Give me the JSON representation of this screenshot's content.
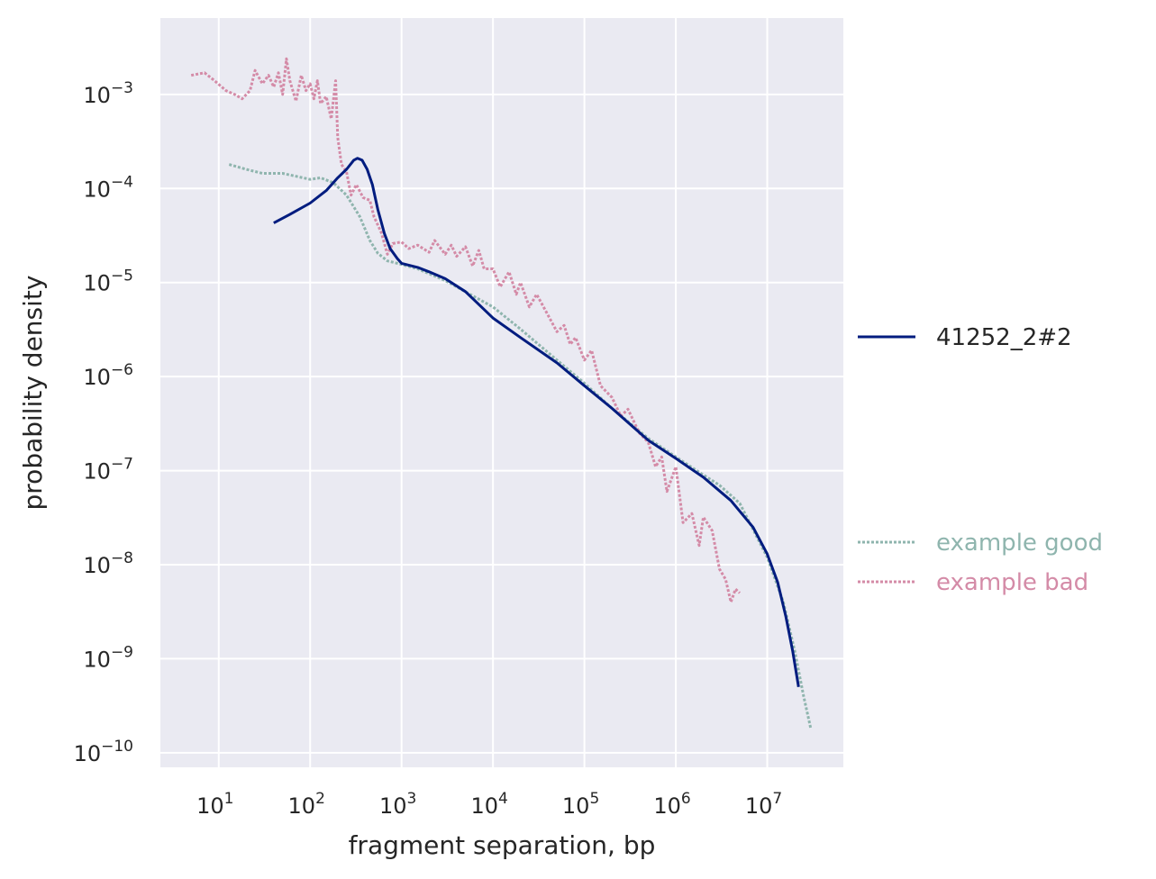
{
  "chart_data": {
    "type": "line",
    "title": "",
    "xlabel": "fragment separation, bp",
    "ylabel": "probability density",
    "x_scale": "log",
    "y_scale": "log",
    "xlim": [
      2.3,
      68000000
    ],
    "ylim": [
      7e-11,
      0.0065
    ],
    "x_ticks": [
      10,
      100,
      1000,
      10000,
      100000,
      1000000,
      10000000
    ],
    "x_tick_labels": [
      {
        "base": "10",
        "exp": "1"
      },
      {
        "base": "10",
        "exp": "2"
      },
      {
        "base": "10",
        "exp": "3"
      },
      {
        "base": "10",
        "exp": "4"
      },
      {
        "base": "10",
        "exp": "5"
      },
      {
        "base": "10",
        "exp": "6"
      },
      {
        "base": "10",
        "exp": "7"
      }
    ],
    "y_ticks": [
      1e-10,
      1e-09,
      1e-08,
      1e-07,
      1e-06,
      1e-05,
      0.0001,
      0.001
    ],
    "y_tick_labels": [
      {
        "base": "10",
        "exp": "−10"
      },
      {
        "base": "10",
        "exp": "−9"
      },
      {
        "base": "10",
        "exp": "−8"
      },
      {
        "base": "10",
        "exp": "−7"
      },
      {
        "base": "10",
        "exp": "−6"
      },
      {
        "base": "10",
        "exp": "−5"
      },
      {
        "base": "10",
        "exp": "−4"
      },
      {
        "base": "10",
        "exp": "−3"
      }
    ],
    "grid": true,
    "legend_placement": "right",
    "background_color": "#EAEAF2",
    "series": [
      {
        "name": "41252_2#2",
        "color": "#001C7F",
        "style": "solid",
        "points": [
          [
            40,
            4.3e-05
          ],
          [
            60,
            5.3e-05
          ],
          [
            100,
            7e-05
          ],
          [
            150,
            9.5e-05
          ],
          [
            200,
            0.00013
          ],
          [
            250,
            0.00016
          ],
          [
            300,
            0.0002
          ],
          [
            330,
            0.00021
          ],
          [
            370,
            0.0002
          ],
          [
            420,
            0.00016
          ],
          [
            480,
            0.00011
          ],
          [
            550,
            6e-05
          ],
          [
            650,
            3.3e-05
          ],
          [
            750,
            2.3e-05
          ],
          [
            900,
            1.8e-05
          ],
          [
            1000,
            1.6e-05
          ],
          [
            1500,
            1.45e-05
          ],
          [
            2000,
            1.3e-05
          ],
          [
            3000,
            1.1e-05
          ],
          [
            5000,
            8e-06
          ],
          [
            10000,
            4.2e-06
          ],
          [
            20000,
            2.6e-06
          ],
          [
            50000,
            1.4e-06
          ],
          [
            100000,
            8e-07
          ],
          [
            200000,
            4.6e-07
          ],
          [
            500000,
            2.1e-07
          ],
          [
            1000000,
            1.35e-07
          ],
          [
            2000000,
            8.5e-08
          ],
          [
            4000000,
            4.8e-08
          ],
          [
            7000000,
            2.5e-08
          ],
          [
            10000000,
            1.3e-08
          ],
          [
            13000000,
            6.5e-09
          ],
          [
            16000000,
            2.8e-09
          ],
          [
            19000000,
            1.2e-09
          ],
          [
            22000000,
            5e-10
          ]
        ]
      },
      {
        "name": "example good",
        "color": "#8FB5AE",
        "style": "dotted",
        "points": [
          [
            13,
            0.00018
          ],
          [
            20,
            0.00016
          ],
          [
            30,
            0.000145
          ],
          [
            50,
            0.000145
          ],
          [
            70,
            0.000135
          ],
          [
            100,
            0.000125
          ],
          [
            130,
            0.00013
          ],
          [
            180,
            0.000115
          ],
          [
            250,
            8.5e-05
          ],
          [
            350,
            5e-05
          ],
          [
            450,
            2.8e-05
          ],
          [
            550,
            2.05e-05
          ],
          [
            700,
            1.7e-05
          ],
          [
            900,
            1.6e-05
          ],
          [
            1500,
            1.4e-05
          ],
          [
            3000,
            1.05e-05
          ],
          [
            10000,
            5.5e-06
          ],
          [
            20000,
            3.2e-06
          ],
          [
            50000,
            1.5e-06
          ],
          [
            100000,
            8.5e-07
          ],
          [
            200000,
            4.6e-07
          ],
          [
            500000,
            2.2e-07
          ],
          [
            1000000,
            1.4e-07
          ],
          [
            2000000,
            9e-08
          ],
          [
            3000000,
            7e-08
          ],
          [
            5000000,
            4.5e-08
          ],
          [
            10000000,
            1.2e-08
          ],
          [
            15000000,
            4e-09
          ],
          [
            20000000,
            1.2e-09
          ],
          [
            25000000,
            4e-10
          ],
          [
            30000000,
            1.8e-10
          ]
        ]
      },
      {
        "name": "example bad",
        "color": "#D48BA7",
        "style": "dotted",
        "points": [
          [
            5,
            0.0016
          ],
          [
            7,
            0.0017
          ],
          [
            9,
            0.0014
          ],
          [
            12,
            0.0011
          ],
          [
            15,
            0.001
          ],
          [
            18,
            0.0009
          ],
          [
            22,
            0.0011
          ],
          [
            25,
            0.0018
          ],
          [
            30,
            0.0013
          ],
          [
            35,
            0.0016
          ],
          [
            40,
            0.0012
          ],
          [
            45,
            0.0017
          ],
          [
            50,
            0.001
          ],
          [
            55,
            0.0024
          ],
          [
            60,
            0.0014
          ],
          [
            70,
            0.00085
          ],
          [
            80,
            0.0016
          ],
          [
            90,
            0.0011
          ],
          [
            100,
            0.0013
          ],
          [
            110,
            0.0009
          ],
          [
            120,
            0.0014
          ],
          [
            130,
            0.0008
          ],
          [
            150,
            0.00095
          ],
          [
            170,
            0.00055
          ],
          [
            190,
            0.0014
          ],
          [
            200,
            0.00035
          ],
          [
            220,
            0.00018
          ],
          [
            250,
            0.00015
          ],
          [
            280,
            8.5e-05
          ],
          [
            320,
            0.00011
          ],
          [
            380,
            8e-05
          ],
          [
            450,
            7.5e-05
          ],
          [
            500,
            5e-05
          ],
          [
            600,
            3.4e-05
          ],
          [
            700,
            2e-05
          ],
          [
            800,
            2.6e-05
          ],
          [
            1000,
            2.7e-05
          ],
          [
            1200,
            2.3e-05
          ],
          [
            1500,
            2.5e-05
          ],
          [
            2000,
            2.1e-05
          ],
          [
            2300,
            2.8e-05
          ],
          [
            3000,
            2e-05
          ],
          [
            3500,
            2.5e-05
          ],
          [
            4000,
            1.9e-05
          ],
          [
            5000,
            2.4e-05
          ],
          [
            6000,
            1.5e-05
          ],
          [
            7000,
            2.2e-05
          ],
          [
            8000,
            1.4e-05
          ],
          [
            10000,
            1.4e-05
          ],
          [
            12000,
            9e-06
          ],
          [
            15000,
            1.3e-05
          ],
          [
            18000,
            7.5e-06
          ],
          [
            20000,
            1e-05
          ],
          [
            25000,
            5.5e-06
          ],
          [
            30000,
            7.5e-06
          ],
          [
            40000,
            4.5e-06
          ],
          [
            50000,
            3e-06
          ],
          [
            60000,
            3.5e-06
          ],
          [
            70000,
            2.2e-06
          ],
          [
            80000,
            2.6e-06
          ],
          [
            100000,
            1.5e-06
          ],
          [
            120000,
            1.9e-06
          ],
          [
            150000,
            8e-07
          ],
          [
            200000,
            6e-07
          ],
          [
            250000,
            3.8e-07
          ],
          [
            300000,
            4.5e-07
          ],
          [
            400000,
            2.5e-07
          ],
          [
            500000,
            2e-07
          ],
          [
            600000,
            1.1e-07
          ],
          [
            700000,
            1.4e-07
          ],
          [
            800000,
            6e-08
          ],
          [
            1000000,
            1.1e-07
          ],
          [
            1200000,
            2.8e-08
          ],
          [
            1500000,
            3.5e-08
          ],
          [
            1800000,
            1.6e-08
          ],
          [
            2000000,
            3.2e-08
          ],
          [
            2500000,
            2.3e-08
          ],
          [
            3000000,
            9e-09
          ],
          [
            3500000,
            7e-09
          ],
          [
            4000000,
            4e-09
          ],
          [
            4500000,
            5.5e-09
          ],
          [
            5000000,
            5e-09
          ]
        ]
      }
    ]
  },
  "legend": {
    "items": [
      {
        "label": "41252_2#2",
        "color": "#001C7F",
        "style": "solid"
      },
      {
        "label": "example good",
        "color": "#8FB5AE",
        "style": "dotted"
      },
      {
        "label": "example bad",
        "color": "#D48BA7",
        "style": "dotted"
      }
    ]
  }
}
